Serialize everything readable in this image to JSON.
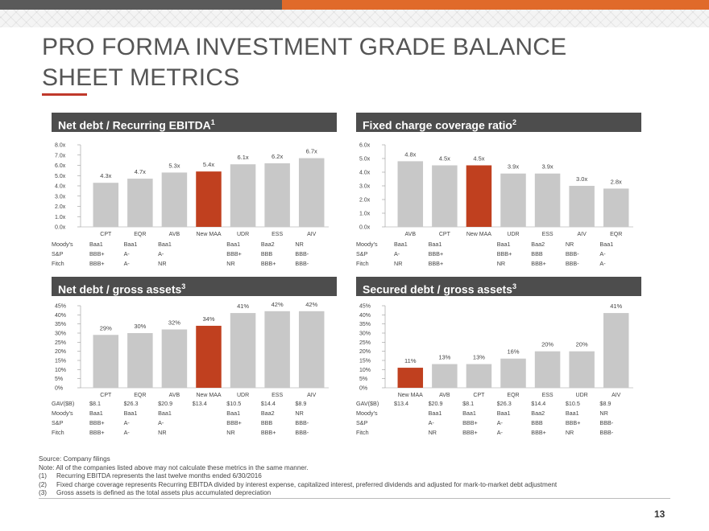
{
  "page": {
    "title": "PRO FORMA INVESTMENT GRADE BALANCE SHEET METRICS",
    "page_number": "13",
    "footer": {
      "source": "Source: Company filings",
      "note": "Note: All of the companies listed above may not calculate these metrics in the same manner.",
      "footnotes": [
        {
          "num": "(1)",
          "text": "Recurring EBITDA represents the last twelve months ended 6/30/2016"
        },
        {
          "num": "(2)",
          "text": "Fixed charge coverage represents Recurring EBITDA divided by interest expense, capitalized interest, preferred dividends and adjusted for mark-to-market debt adjustment"
        },
        {
          "num": "(3)",
          "text": "Gross assets is defined as the total assets plus accumulated depreciation"
        }
      ]
    }
  },
  "colors": {
    "bar": "#c8c8c8",
    "highlight": "#c0401f",
    "header": "#4d4d4d",
    "accent": "#e06a2a"
  },
  "chart_data": [
    {
      "type": "bar",
      "title": "Net debt / Recurring EBITDA",
      "title_sup": "1",
      "categories": [
        "CPT",
        "EQR",
        "AVB",
        "New MAA",
        "UDR",
        "ESS",
        "AIV"
      ],
      "values": [
        4.3,
        4.7,
        5.3,
        5.4,
        6.1,
        6.2,
        6.7
      ],
      "value_labels": [
        "4.3x",
        "4.7x",
        "5.3x",
        "5.4x",
        "6.1x",
        "6.2x",
        "6.7x"
      ],
      "highlight": "New MAA",
      "ylim": [
        0,
        8
      ],
      "yticks": [
        "0.0x",
        "1.0x",
        "2.0x",
        "3.0x",
        "4.0x",
        "5.0x",
        "6.0x",
        "7.0x",
        "8.0x"
      ],
      "table": [
        {
          "label": "Moody's",
          "cells": [
            "Baa1",
            "Baa1",
            "Baa1",
            "",
            "Baa1",
            "Baa2",
            "NR"
          ]
        },
        {
          "label": "S&P",
          "cells": [
            "BBB+",
            "A-",
            "A-",
            "",
            "BBB+",
            "BBB",
            "BBB-"
          ]
        },
        {
          "label": "Fitch",
          "cells": [
            "BBB+",
            "A-",
            "NR",
            "",
            "NR",
            "BBB+",
            "BBB-"
          ]
        }
      ]
    },
    {
      "type": "bar",
      "title": "Fixed charge coverage ratio",
      "title_sup": "2",
      "categories": [
        "AVB",
        "CPT",
        "New MAA",
        "UDR",
        "ESS",
        "AIV",
        "EQR"
      ],
      "values": [
        4.8,
        4.5,
        4.5,
        3.9,
        3.9,
        3.0,
        2.8
      ],
      "value_labels": [
        "4.8x",
        "4.5x",
        "4.5x",
        "3.9x",
        "3.9x",
        "3.0x",
        "2.8x"
      ],
      "highlight": "New MAA",
      "ylim": [
        0,
        6
      ],
      "yticks": [
        "0.0x",
        "1.0x",
        "2.0x",
        "3.0x",
        "4.0x",
        "5.0x",
        "6.0x"
      ],
      "table": [
        {
          "label": "Moody's",
          "cells": [
            "Baa1",
            "Baa1",
            "",
            "Baa1",
            "Baa2",
            "NR",
            "Baa1"
          ]
        },
        {
          "label": "S&P",
          "cells": [
            "A-",
            "BBB+",
            "",
            "BBB+",
            "BBB",
            "BBB-",
            "A-"
          ]
        },
        {
          "label": "Fitch",
          "cells": [
            "NR",
            "BBB+",
            "",
            "NR",
            "BBB+",
            "BBB-",
            "A-"
          ]
        }
      ]
    },
    {
      "type": "bar",
      "title": "Net debt / gross assets",
      "title_sup": "3",
      "categories": [
        "CPT",
        "EQR",
        "AVB",
        "New MAA",
        "UDR",
        "ESS",
        "AIV"
      ],
      "values": [
        29,
        30,
        32,
        34,
        41,
        42,
        42
      ],
      "value_labels": [
        "29%",
        "30%",
        "32%",
        "34%",
        "41%",
        "42%",
        "42%"
      ],
      "highlight": "New MAA",
      "ylim": [
        0,
        45
      ],
      "yticks": [
        "0%",
        "5%",
        "10%",
        "15%",
        "20%",
        "25%",
        "30%",
        "35%",
        "40%",
        "45%"
      ],
      "table": [
        {
          "label": "GAV($B)",
          "cells": [
            "$8.1",
            "$26.3",
            "$20.9",
            "$13.4",
            "$10.5",
            "$14.4",
            "$8.9"
          ]
        },
        {
          "label": "Moody's",
          "cells": [
            "Baa1",
            "Baa1",
            "Baa1",
            "",
            "Baa1",
            "Baa2",
            "NR"
          ]
        },
        {
          "label": "S&P",
          "cells": [
            "BBB+",
            "A-",
            "A-",
            "",
            "BBB+",
            "BBB",
            "BBB-"
          ]
        },
        {
          "label": "Fitch",
          "cells": [
            "BBB+",
            "A-",
            "NR",
            "",
            "NR",
            "BBB+",
            "BBB-"
          ]
        }
      ]
    },
    {
      "type": "bar",
      "title": "Secured debt / gross assets",
      "title_sup": "3",
      "categories": [
        "New MAA",
        "AVB",
        "CPT",
        "EQR",
        "ESS",
        "UDR",
        "AIV"
      ],
      "values": [
        11,
        13,
        13,
        16,
        20,
        20,
        41
      ],
      "value_labels": [
        "11%",
        "13%",
        "13%",
        "16%",
        "20%",
        "20%",
        "41%"
      ],
      "highlight": "New MAA",
      "ylim": [
        0,
        45
      ],
      "yticks": [
        "0%",
        "5%",
        "10%",
        "15%",
        "20%",
        "25%",
        "30%",
        "35%",
        "40%",
        "45%"
      ],
      "table": [
        {
          "label": "GAV($B)",
          "cells": [
            "$13.4",
            "$20.9",
            "$8.1",
            "$26.3",
            "$14.4",
            "$10.5",
            "$8.9"
          ]
        },
        {
          "label": "Moody's",
          "cells": [
            "",
            "Baa1",
            "Baa1",
            "Baa1",
            "Baa2",
            "Baa1",
            "NR"
          ]
        },
        {
          "label": "S&P",
          "cells": [
            "",
            "A-",
            "BBB+",
            "A-",
            "BBB",
            "BBB+",
            "BBB-"
          ]
        },
        {
          "label": "Fitch",
          "cells": [
            "",
            "NR",
            "BBB+",
            "A-",
            "BBB+",
            "NR",
            "BBB-"
          ]
        }
      ]
    }
  ]
}
